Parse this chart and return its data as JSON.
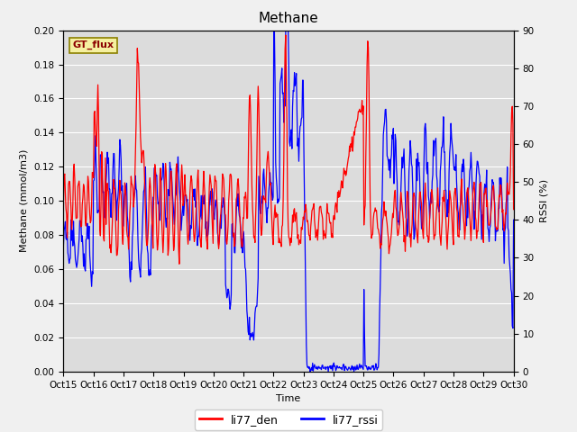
{
  "title": "Methane",
  "xlabel": "Time",
  "ylabel_left": "Methane (mmol/m3)",
  "ylabel_right": "RSSI (%)",
  "ylim_left": [
    0.0,
    0.2
  ],
  "ylim_right": [
    0,
    90
  ],
  "xtick_labels": [
    "Oct 15",
    "Oct 16",
    "Oct 17",
    "Oct 18",
    "Oct 19",
    "Oct 20",
    "Oct 21",
    "Oct 22",
    "Oct 23",
    "Oct 24",
    "Oct 25",
    "Oct 26",
    "Oct 27",
    "Oct 28",
    "Oct 29",
    "Oct 30"
  ],
  "gt_flux_label": "GT_flux",
  "legend_labels": [
    "li77_den",
    "li77_rssi"
  ],
  "line_colors": [
    "red",
    "blue"
  ],
  "fig_bg_color": "#f0f0f0",
  "plot_bg_color": "#dcdcdc",
  "grid_color": "white",
  "title_fontsize": 11,
  "label_fontsize": 8,
  "tick_fontsize": 7.5
}
